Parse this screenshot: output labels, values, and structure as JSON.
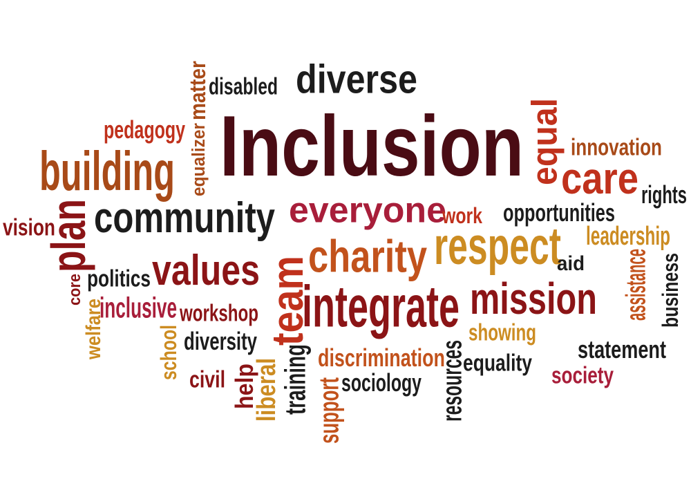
{
  "colors": {
    "background": "#ffffff",
    "maroon": "#4a0c14",
    "dark_red": "#8b1416",
    "crimson": "#a81e3a",
    "red": "#c0311c",
    "orange": "#c2521c",
    "dark_orange": "#a84a18",
    "gold": "#cc8c22",
    "near_black": "#1c1c1c"
  },
  "words": [
    {
      "text": "Inclusion",
      "color": "maroon",
      "rotated": false
    },
    {
      "text": "diverse",
      "color": "near_black",
      "rotated": false
    },
    {
      "text": "disabled",
      "color": "near_black",
      "rotated": false
    },
    {
      "text": "matter",
      "color": "dark_orange",
      "rotated": true
    },
    {
      "text": "equalizer",
      "color": "dark_orange",
      "rotated": true
    },
    {
      "text": "pedagogy",
      "color": "red",
      "rotated": false
    },
    {
      "text": "building",
      "color": "dark_orange",
      "rotated": false
    },
    {
      "text": "community",
      "color": "near_black",
      "rotated": false
    },
    {
      "text": "plan",
      "color": "dark_red",
      "rotated": true
    },
    {
      "text": "vision",
      "color": "dark_red",
      "rotated": false
    },
    {
      "text": "everyone",
      "color": "crimson",
      "rotated": false
    },
    {
      "text": "equal",
      "color": "red",
      "rotated": true
    },
    {
      "text": "innovation",
      "color": "dark_orange",
      "rotated": false
    },
    {
      "text": "care",
      "color": "red",
      "rotated": false
    },
    {
      "text": "rights",
      "color": "near_black",
      "rotated": false
    },
    {
      "text": "work",
      "color": "red",
      "rotated": false
    },
    {
      "text": "opportunities",
      "color": "near_black",
      "rotated": false
    },
    {
      "text": "leadership",
      "color": "gold",
      "rotated": false
    },
    {
      "text": "respect",
      "color": "gold",
      "rotated": false
    },
    {
      "text": "charity",
      "color": "orange",
      "rotated": false
    },
    {
      "text": "values",
      "color": "dark_red",
      "rotated": false
    },
    {
      "text": "politics",
      "color": "near_black",
      "rotated": false
    },
    {
      "text": "core",
      "color": "dark_red",
      "rotated": true
    },
    {
      "text": "team",
      "color": "red",
      "rotated": true
    },
    {
      "text": "aid",
      "color": "near_black",
      "rotated": false
    },
    {
      "text": "assistance",
      "color": "orange",
      "rotated": true
    },
    {
      "text": "business",
      "color": "near_black",
      "rotated": true
    },
    {
      "text": "integrate",
      "color": "dark_red",
      "rotated": false
    },
    {
      "text": "mission",
      "color": "dark_red",
      "rotated": false
    },
    {
      "text": "inclusive",
      "color": "crimson",
      "rotated": false
    },
    {
      "text": "workshop",
      "color": "dark_red",
      "rotated": false
    },
    {
      "text": "welfare",
      "color": "gold",
      "rotated": true
    },
    {
      "text": "school",
      "color": "gold",
      "rotated": true
    },
    {
      "text": "diversity",
      "color": "near_black",
      "rotated": false
    },
    {
      "text": "showing",
      "color": "gold",
      "rotated": false
    },
    {
      "text": "statement",
      "color": "near_black",
      "rotated": false
    },
    {
      "text": "discrimination",
      "color": "orange",
      "rotated": false
    },
    {
      "text": "resources",
      "color": "near_black",
      "rotated": true
    },
    {
      "text": "equality",
      "color": "near_black",
      "rotated": false
    },
    {
      "text": "society",
      "color": "crimson",
      "rotated": false
    },
    {
      "text": "civil",
      "color": "dark_red",
      "rotated": false
    },
    {
      "text": "help",
      "color": "dark_red",
      "rotated": true
    },
    {
      "text": "liberal",
      "color": "gold",
      "rotated": true
    },
    {
      "text": "training",
      "color": "near_black",
      "rotated": true
    },
    {
      "text": "support",
      "color": "orange",
      "rotated": true
    },
    {
      "text": "sociology",
      "color": "near_black",
      "rotated": false
    }
  ]
}
